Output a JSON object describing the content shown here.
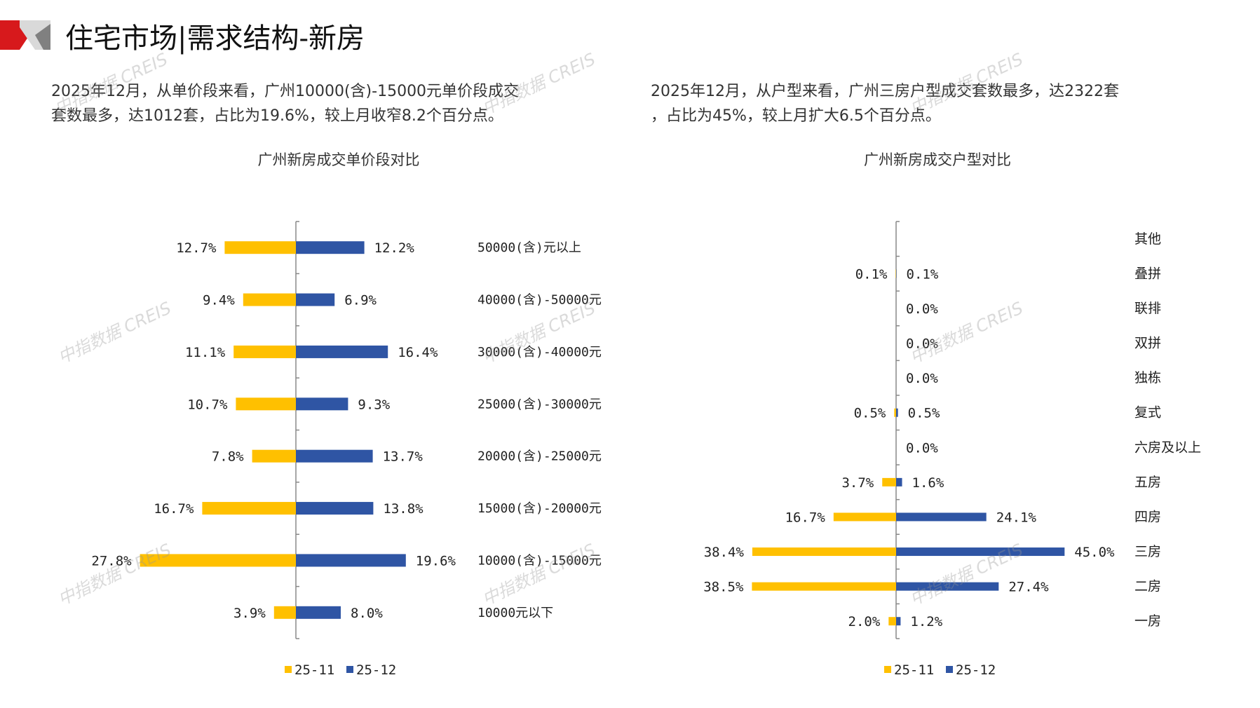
{
  "header": {
    "title": "住宅市场|需求结构-新房"
  },
  "paragraphs": {
    "left": [
      "2025年12月，从单价段来看，广州10000(含)-15000元单价段成交",
      "套数最多，达1012套，占比为19.6%，较上月收窄8.2个百分点。"
    ],
    "right": [
      "2025年12月，从户型来看，广州三房户型成交套数最多，达2322套",
      "，占比为45%，较上月扩大6.5个百分点。"
    ]
  },
  "watermark": "中指数据 CREIS",
  "colors": {
    "s1": "#FFC000",
    "s2": "#2F55A4",
    "axis": "#888888",
    "logo_red": "#D7191C",
    "logo_grey": "#A6A6A6"
  },
  "chart_data": [
    {
      "type": "bar",
      "orientation": "horizontal-butterfly",
      "title": "广州新房成交单价段对比",
      "categories": [
        "50000(含)元以上",
        "40000(含)-50000元",
        "30000(含)-40000元",
        "25000(含)-30000元",
        "20000(含)-25000元",
        "15000(含)-20000元",
        "10000(含)-15000元",
        "10000元以下"
      ],
      "series": [
        {
          "name": "25-11",
          "values": [
            12.7,
            9.4,
            11.1,
            10.7,
            7.8,
            16.7,
            27.8,
            3.9
          ]
        },
        {
          "name": "25-12",
          "values": [
            12.2,
            6.9,
            16.4,
            9.3,
            13.7,
            13.8,
            19.6,
            8.0
          ]
        }
      ],
      "unit": "%",
      "legend": "bottom"
    },
    {
      "type": "bar",
      "orientation": "horizontal-butterfly",
      "title": "广州新房成交户型对比",
      "categories": [
        "其他",
        "叠拼",
        "联排",
        "双拼",
        "独栋",
        "复式",
        "六房及以上",
        "五房",
        "四房",
        "三房",
        "二房",
        "一房"
      ],
      "series": [
        {
          "name": "25-11",
          "values": [
            null,
            0.1,
            0.0,
            0.0,
            0.0,
            0.5,
            0.0,
            3.7,
            16.7,
            38.4,
            38.5,
            2.0
          ]
        },
        {
          "name": "25-12",
          "values": [
            null,
            0.1,
            0.0,
            0.0,
            0.0,
            0.5,
            0.0,
            1.6,
            24.1,
            45.0,
            27.4,
            1.2
          ]
        }
      ],
      "unit": "%",
      "legend": "bottom"
    }
  ]
}
